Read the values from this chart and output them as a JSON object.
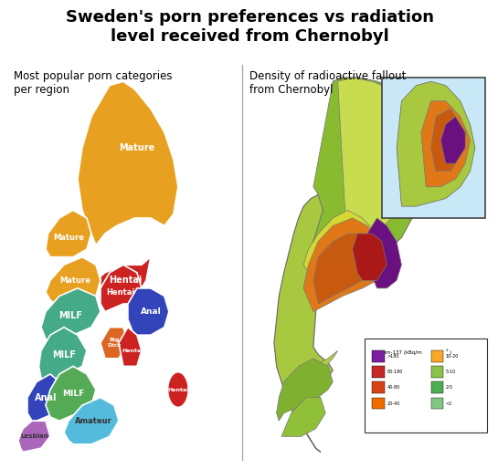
{
  "title": "Sweden's porn preferences vs radiation\nlevel received from Chernobyl",
  "left_subtitle": "Most popular porn categories\nper region",
  "right_subtitle": "Density of radioactive fallout\nfrom Chernobyl",
  "background_color": "#ffffff",
  "title_fontsize": 13,
  "subtitle_fontsize": 8.5,
  "legend_title": "Cesium-137 (kBq/m²)",
  "legend_items": [
    {
      ">180": "#7B1FA2"
    },
    {
      "80-180": "#C62828"
    },
    {
      "40-80": "#D84315"
    },
    {
      "20-40": "#EF6C00"
    },
    {
      "10-20": "#F9A825"
    },
    {
      "5-10": "#8BC34A"
    },
    {
      "2-5": "#4CAF50"
    },
    {
      "<2": "#81C784"
    }
  ]
}
